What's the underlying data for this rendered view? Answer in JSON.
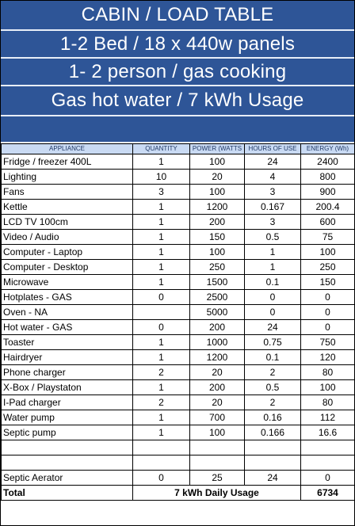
{
  "header": {
    "title": "CABIN / LOAD TABLE",
    "line2": "1-2 Bed / 18 x 440w panels",
    "line3": "1- 2 person / gas cooking",
    "line4": "Gas hot water / 7 kWh Usage"
  },
  "table": {
    "columns": [
      "APPLIANCE",
      "QUANTITY",
      "POWER (WATTS",
      "HOURS OF USE",
      "ENERGY (Wh)"
    ],
    "rows": [
      [
        "Fridge / freezer  400L",
        "1",
        "100",
        "24",
        "2400"
      ],
      [
        "Lighting",
        "10",
        "20",
        "4",
        "800"
      ],
      [
        "Fans",
        "3",
        "100",
        "3",
        "900"
      ],
      [
        "Kettle",
        "1",
        "1200",
        "0.167",
        "200.4"
      ],
      [
        "LCD  TV 100cm",
        "1",
        "200",
        "3",
        "600"
      ],
      [
        "Video / Audio",
        "1",
        "150",
        "0.5",
        "75"
      ],
      [
        "Computer - Laptop",
        "1",
        "100",
        "1",
        "100"
      ],
      [
        "Computer - Desktop",
        "1",
        "250",
        "1",
        "250"
      ],
      [
        "Microwave",
        "1",
        "1500",
        "0.1",
        "150"
      ],
      [
        "Hotplates  -  GAS",
        "0",
        "2500",
        "0",
        "0"
      ],
      [
        "Oven        - NA",
        "",
        "5000",
        "0",
        "0"
      ],
      [
        "Hot water   - GAS",
        "0",
        "200",
        "24",
        "0"
      ],
      [
        "Toaster",
        "1",
        "1000",
        "0.75",
        "750"
      ],
      [
        "Hairdryer",
        "1",
        "1200",
        "0.1",
        "120"
      ],
      [
        "Phone charger",
        "2",
        "20",
        "2",
        "80"
      ],
      [
        "X-Box / Playstaton",
        "1",
        "200",
        "0.5",
        "100"
      ],
      [
        "I-Pad charger",
        "2",
        "20",
        "2",
        "80"
      ],
      [
        "Water pump",
        "1",
        "700",
        "0.16",
        "112"
      ],
      [
        "Septic pump",
        "1",
        "100",
        "0.166",
        "16.6"
      ],
      [
        "",
        "",
        "",
        "",
        ""
      ],
      [
        "",
        "",
        "",
        "",
        ""
      ],
      [
        "Septic  Aerator",
        "0",
        "25",
        "24",
        "0"
      ]
    ],
    "total": {
      "label": "Total",
      "usage": "7  kWh Daily Usage",
      "energy": "6734"
    }
  }
}
